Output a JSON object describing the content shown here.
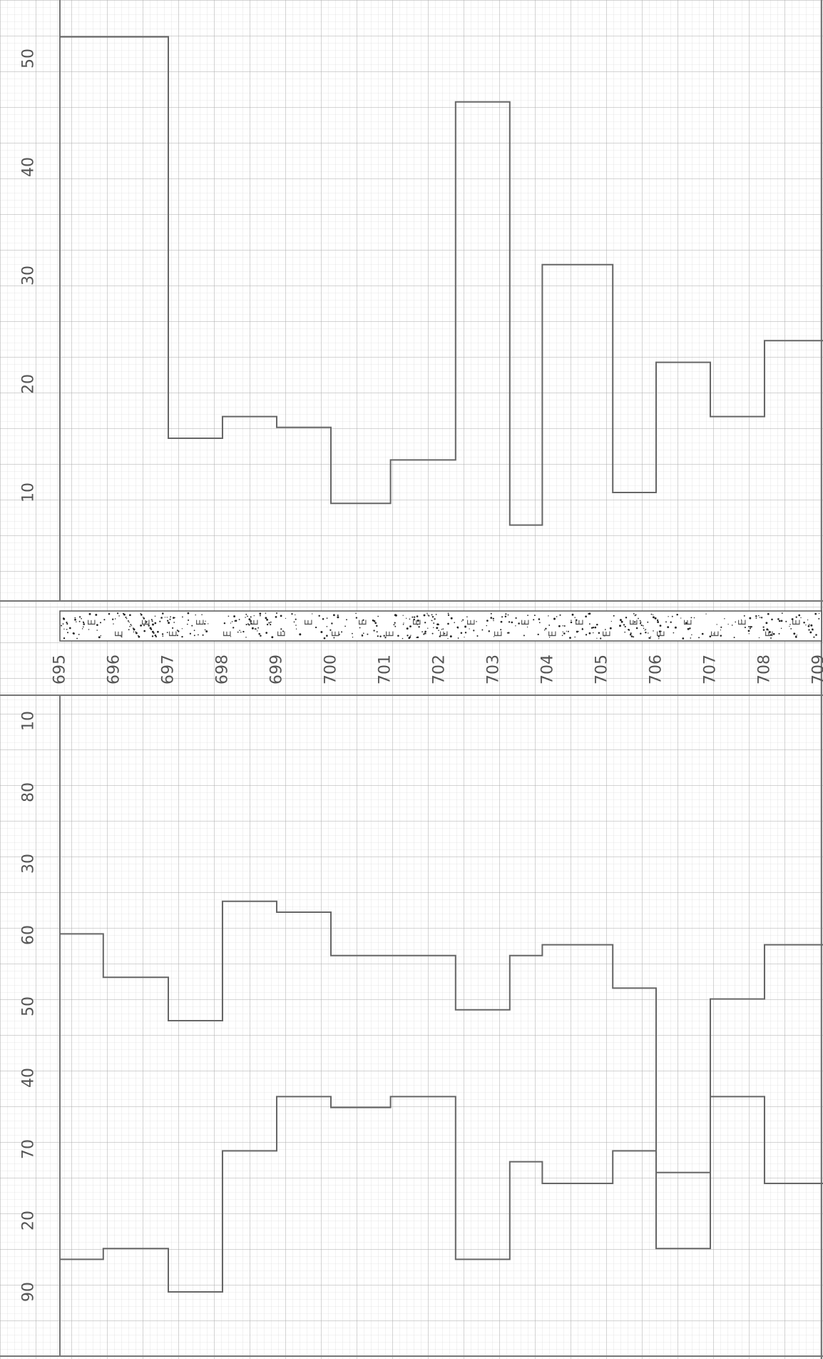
{
  "chart_data": [
    {
      "type": "line",
      "subtype": "step-profile",
      "orientation": "depth-down",
      "title": "",
      "xlabel": "",
      "ylabel": "",
      "xlim": [
        0,
        52
      ],
      "depth_ticks": [
        "695",
        "696",
        "697",
        "698",
        "699",
        "700",
        "701",
        "702",
        "703",
        "704",
        "705",
        "706",
        "707",
        "708",
        "709"
      ],
      "x_ticks": [
        "10",
        "20",
        "30",
        "40",
        "50"
      ],
      "grid": true,
      "series": [
        {
          "steps": [
            {
              "from": 695.0,
              "to": 697.0,
              "value": 52
            },
            {
              "from": 697.0,
              "to": 698.0,
              "value": 15
            },
            {
              "from": 698.0,
              "to": 699.0,
              "value": 17
            },
            {
              "from": 699.0,
              "to": 700.0,
              "value": 16
            },
            {
              "from": 700.0,
              "to": 701.1,
              "value": 9
            },
            {
              "from": 701.1,
              "to": 702.3,
              "value": 13
            },
            {
              "from": 702.3,
              "to": 703.3,
              "value": 46
            },
            {
              "from": 703.3,
              "to": 703.9,
              "value": 7
            },
            {
              "from": 703.9,
              "to": 705.2,
              "value": 31
            },
            {
              "from": 705.2,
              "to": 706.0,
              "value": 10
            },
            {
              "from": 706.0,
              "to": 707.0,
              "value": 22
            },
            {
              "from": 707.0,
              "to": 708.0,
              "value": 17
            },
            {
              "from": 708.0,
              "to": 709.1,
              "value": 24
            }
          ]
        }
      ]
    },
    {
      "type": "line",
      "subtype": "lithology-column",
      "orientation": "depth-down",
      "title": "",
      "pattern_symbol": "E",
      "depth_range": [
        695,
        709
      ]
    },
    {
      "type": "line",
      "subtype": "step-profile",
      "orientation": "depth-down",
      "title": "",
      "xlabel": "",
      "ylabel": "",
      "x_ticks": [
        "10",
        "80",
        "30",
        "60",
        "50",
        "40",
        "70",
        "20",
        "90"
      ],
      "grid": true,
      "series": [
        {
          "steps": [
            {
              "from": 695.0,
              "to": 695.8,
              "value": 22
            },
            {
              "from": 695.8,
              "to": 697.0,
              "value": 26
            },
            {
              "from": 697.0,
              "to": 698.0,
              "value": 30
            },
            {
              "from": 698.0,
              "to": 699.0,
              "value": 19
            },
            {
              "from": 699.0,
              "to": 700.0,
              "value": 20
            },
            {
              "from": 700.0,
              "to": 702.3,
              "value": 24
            },
            {
              "from": 702.3,
              "to": 703.3,
              "value": 29
            },
            {
              "from": 703.3,
              "to": 703.9,
              "value": 24
            },
            {
              "from": 703.9,
              "to": 705.2,
              "value": 23
            },
            {
              "from": 705.2,
              "to": 706.0,
              "value": 27
            },
            {
              "from": 706.0,
              "to": 707.0,
              "value": 51
            },
            {
              "from": 707.0,
              "to": 708.0,
              "value": 28
            },
            {
              "from": 708.0,
              "to": 709.1,
              "value": 23
            }
          ]
        },
        {
          "steps": [
            {
              "from": 695.0,
              "to": 695.8,
              "value": 52
            },
            {
              "from": 695.8,
              "to": 697.0,
              "value": 51
            },
            {
              "from": 697.0,
              "to": 698.0,
              "value": 55
            },
            {
              "from": 698.0,
              "to": 699.0,
              "value": 42
            },
            {
              "from": 699.0,
              "to": 700.0,
              "value": 37
            },
            {
              "from": 700.0,
              "to": 701.1,
              "value": 38
            },
            {
              "from": 701.1,
              "to": 702.3,
              "value": 37
            },
            {
              "from": 702.3,
              "to": 703.3,
              "value": 52
            },
            {
              "from": 703.3,
              "to": 703.9,
              "value": 43
            },
            {
              "from": 703.9,
              "to": 705.2,
              "value": 45
            },
            {
              "from": 705.2,
              "to": 706.0,
              "value": 42
            },
            {
              "from": 706.0,
              "to": 707.0,
              "value": 44
            },
            {
              "from": 707.0,
              "to": 708.0,
              "value": 37
            },
            {
              "from": 708.0,
              "to": 709.1,
              "value": 45
            }
          ]
        }
      ]
    }
  ]
}
